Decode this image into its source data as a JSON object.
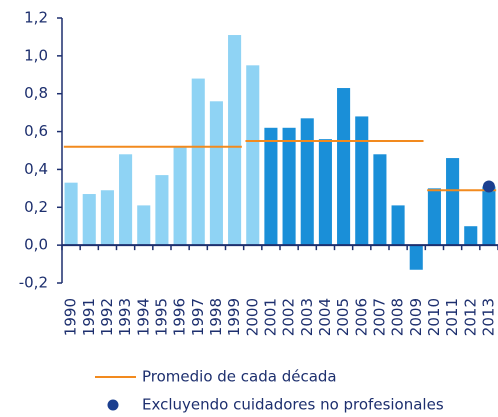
{
  "chart_data": {
    "type": "bar",
    "categories": [
      "1990",
      "1991",
      "1992",
      "1993",
      "1994",
      "1995",
      "1996",
      "1997",
      "1998",
      "1999",
      "2000",
      "2001",
      "2002",
      "2003",
      "2004",
      "2005",
      "2006",
      "2007",
      "2008",
      "2009",
      "2010",
      "2011",
      "2012",
      "2013"
    ],
    "values": [
      0.33,
      0.27,
      0.29,
      0.48,
      0.21,
      0.37,
      0.52,
      0.88,
      0.76,
      1.11,
      0.95,
      0.62,
      0.62,
      0.67,
      0.56,
      0.83,
      0.68,
      0.48,
      0.21,
      -0.13,
      0.3,
      0.46,
      0.1,
      0.31
    ],
    "colors": [
      "#8fd3f4",
      "#8fd3f4",
      "#8fd3f4",
      "#8fd3f4",
      "#8fd3f4",
      "#8fd3f4",
      "#8fd3f4",
      "#8fd3f4",
      "#8fd3f4",
      "#8fd3f4",
      "#8fd3f4",
      "#1a8fd8",
      "#1a8fd8",
      "#1a8fd8",
      "#1a8fd8",
      "#1a8fd8",
      "#1a8fd8",
      "#1a8fd8",
      "#1a8fd8",
      "#1a8fd8",
      "#1a8fd8",
      "#1a8fd8",
      "#1a8fd8",
      "#1a8fd8"
    ],
    "ylim": [
      -0.2,
      1.2
    ],
    "yticks": [
      {
        "value": -0.2,
        "label": "-0,2"
      },
      {
        "value": 0,
        "label": "0,0"
      },
      {
        "value": 0.2,
        "label": "0,2"
      },
      {
        "value": 0.4,
        "label": "0,4"
      },
      {
        "value": 0.6,
        "label": "0,6"
      },
      {
        "value": 0.8,
        "label": "0,8"
      },
      {
        "value": 1.0,
        "label": "1,0"
      },
      {
        "value": 1.2,
        "label": "1,2"
      }
    ],
    "averages": {
      "name": "Promedio de cada década",
      "color": "#f28a1e",
      "segments": [
        {
          "start": "1990",
          "end": "1999",
          "value": 0.52
        },
        {
          "start": "2000",
          "end": "2009",
          "value": 0.55
        },
        {
          "start": "2010",
          "end": "2013",
          "value": 0.29
        }
      ]
    },
    "point": {
      "name": "Excluyendo cuidadores no profesionales",
      "category": "2013",
      "value": 0.31,
      "color": "#1b3f8f"
    }
  }
}
